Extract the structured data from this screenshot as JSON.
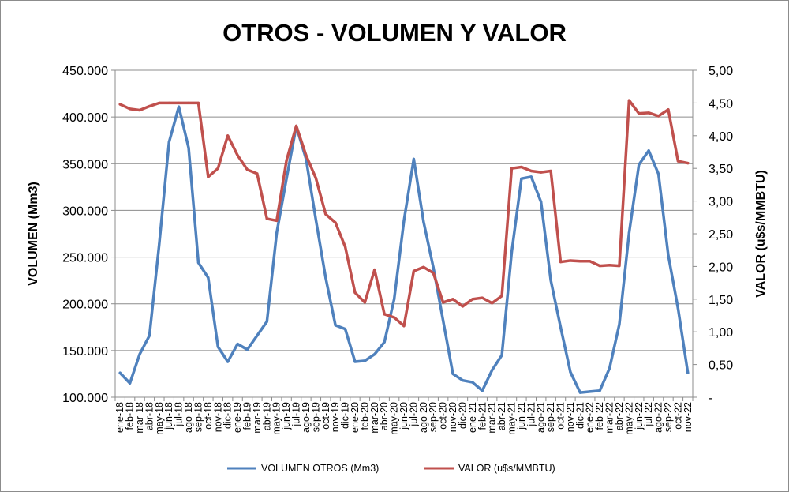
{
  "chart_data": {
    "type": "line",
    "title": "OTROS - VOLUMEN Y VALOR",
    "ylabel": "VOLUMEN (Mm3)",
    "y2label": "VALOR (u$s/MMBTU)",
    "ylim": [
      100000,
      450000
    ],
    "y2lim": [
      0,
      5
    ],
    "yticks": [
      "100.000",
      "150.000",
      "200.000",
      "250.000",
      "300.000",
      "350.000",
      "400.000",
      "450.000"
    ],
    "y2ticks": [
      "-",
      "0,50",
      "1,00",
      "1,50",
      "2,00",
      "2,50",
      "3,00",
      "3,50",
      "4,00",
      "4,50",
      "5,00"
    ],
    "grid": true,
    "legend_position": "bottom",
    "colors": {
      "volume": "#4f81bd",
      "value": "#c0504d",
      "grid": "#8c8c8c"
    },
    "categories": [
      "ene-18",
      "feb-18",
      "mar-18",
      "abr-18",
      "may-18",
      "jun-18",
      "jul-18",
      "ago-18",
      "sep-18",
      "oct-18",
      "nov-18",
      "dic-18",
      "ene-19",
      "feb-19",
      "mar-19",
      "abr-19",
      "may-19",
      "jun-19",
      "jul-19",
      "ago-19",
      "sep-19",
      "oct-19",
      "nov-19",
      "dic-19",
      "ene-20",
      "feb-20",
      "mar-20",
      "abr-20",
      "may-20",
      "jun-20",
      "jul-20",
      "ago-20",
      "sep-20",
      "oct-20",
      "nov-20",
      "dic-20",
      "ene-21",
      "feb-21",
      "mar-21",
      "abr-21",
      "may-21",
      "jun-21",
      "jul-21",
      "ago-21",
      "sep-21",
      "oct-21",
      "nov-21",
      "dic-21",
      "ene-22",
      "feb-22",
      "mar-22",
      "abr-22",
      "may-22",
      "jun-22",
      "jul-22",
      "ago-22",
      "sep-22",
      "oct-22",
      "nov-22"
    ],
    "series": [
      {
        "name": "VOLUMEN OTROS (Mm3)",
        "axis": "left",
        "values": [
          126000,
          115000,
          146000,
          166000,
          264000,
          373000,
          411000,
          367000,
          244000,
          228000,
          154000,
          138000,
          157000,
          151000,
          166000,
          181000,
          276000,
          334000,
          390000,
          355000,
          290000,
          228000,
          177000,
          173000,
          138000,
          139000,
          146000,
          159000,
          205000,
          289000,
          355000,
          288000,
          239000,
          182000,
          125000,
          118000,
          116000,
          107000,
          129000,
          145000,
          255000,
          334000,
          336000,
          309000,
          225000,
          175000,
          127000,
          105000,
          106000,
          107000,
          131000,
          178000,
          276000,
          349000,
          364000,
          339000,
          252000,
          195000,
          126000
        ]
      },
      {
        "name": "VALOR (u$s/MMBTU)",
        "axis": "right",
        "values": [
          4.48,
          4.41,
          4.39,
          4.45,
          4.5,
          4.5,
          4.5,
          4.5,
          4.5,
          3.37,
          3.5,
          4.0,
          3.7,
          3.48,
          3.42,
          2.73,
          2.7,
          3.62,
          4.15,
          3.7,
          3.35,
          2.8,
          2.67,
          2.3,
          1.6,
          1.45,
          1.95,
          1.27,
          1.22,
          1.09,
          1.93,
          1.99,
          1.9,
          1.45,
          1.5,
          1.39,
          1.5,
          1.52,
          1.44,
          1.55,
          3.5,
          3.52,
          3.46,
          3.44,
          3.46,
          2.07,
          2.09,
          2.08,
          2.08,
          2.01,
          2.02,
          2.01,
          4.54,
          4.34,
          4.35,
          4.3,
          4.4,
          3.61,
          3.58
        ]
      }
    ]
  }
}
